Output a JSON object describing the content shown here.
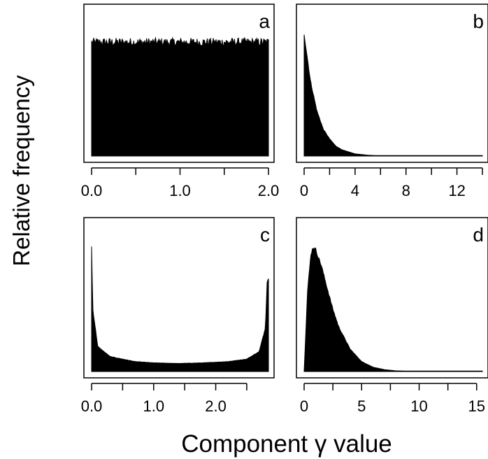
{
  "figure": {
    "ylabel": "Relative frequency",
    "xlabel": "Component γ value"
  },
  "chart_data": [
    {
      "panel": "a",
      "type": "area",
      "shape": "uniform",
      "xlim": [
        0,
        2
      ],
      "ticks": [
        0,
        0.5,
        1,
        1.5,
        2
      ],
      "tick_labels": [
        "0.0",
        "",
        "1.0",
        "",
        "2.0"
      ],
      "note": "flat distribution with small random noise",
      "x": [
        0.0,
        0.25,
        0.5,
        0.75,
        1.0,
        1.25,
        1.5,
        1.75,
        2.0
      ],
      "y": [
        1.0,
        1.0,
        1.0,
        1.0,
        1.0,
        1.0,
        1.0,
        1.0,
        1.0
      ]
    },
    {
      "panel": "b",
      "type": "area",
      "shape": "exponential",
      "xlim": [
        0,
        14
      ],
      "ticks": [
        0,
        2,
        4,
        6,
        8,
        10,
        12,
        14
      ],
      "tick_labels": [
        "0",
        "",
        "4",
        "",
        "8",
        "",
        "12",
        ""
      ],
      "x": [
        0,
        0.5,
        1,
        1.5,
        2,
        2.5,
        3,
        4,
        5,
        6,
        8,
        10,
        12,
        14
      ],
      "y": [
        1.0,
        0.61,
        0.37,
        0.22,
        0.14,
        0.08,
        0.05,
        0.018,
        0.007,
        0.002,
        0.0,
        0.0,
        0.0,
        0.0
      ]
    },
    {
      "panel": "c",
      "type": "area",
      "shape": "u-shaped (arcsine)",
      "xlim": [
        0,
        2.85
      ],
      "ticks": [
        0,
        0.5,
        1,
        1.5,
        2,
        2.5
      ],
      "tick_labels": [
        "0.0",
        "",
        "1.0",
        "",
        "2.0",
        ""
      ],
      "x": [
        0.0,
        0.02,
        0.1,
        0.3,
        0.7,
        1.0,
        1.4,
        1.8,
        2.2,
        2.5,
        2.7,
        2.8,
        2.83
      ],
      "y": [
        1.0,
        0.5,
        0.2,
        0.12,
        0.08,
        0.07,
        0.065,
        0.07,
        0.08,
        0.1,
        0.16,
        0.35,
        0.74
      ]
    },
    {
      "panel": "d",
      "type": "area",
      "shape": "right-skewed (gamma)",
      "xlim": [
        0,
        15.5
      ],
      "ticks": [
        0,
        2.5,
        5,
        7.5,
        10,
        12.5,
        15
      ],
      "tick_labels": [
        "0",
        "",
        "5",
        "",
        "10",
        "",
        "15"
      ],
      "x": [
        0.0,
        0.3,
        0.6,
        0.8,
        1.0,
        1.5,
        2.0,
        2.5,
        3.0,
        4.0,
        5.0,
        6.0,
        7.0,
        8.0,
        10.0,
        15.5
      ],
      "y": [
        0.0,
        0.65,
        0.95,
        1.0,
        0.98,
        0.85,
        0.67,
        0.5,
        0.36,
        0.18,
        0.08,
        0.035,
        0.015,
        0.006,
        0.001,
        0.0
      ]
    }
  ]
}
